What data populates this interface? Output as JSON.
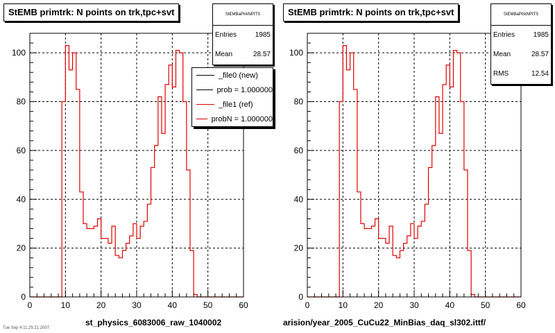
{
  "colors": {
    "hist": "#e00000",
    "ref_line": "#000000",
    "grid": "#000000"
  },
  "chart_data": [
    {
      "type": "bar",
      "title": "StEMB primtrk: N points on trk,tpc+svt",
      "xlim": [
        0,
        60
      ],
      "ylim": [
        0,
        108
      ],
      "x_ticks": [
        0,
        10,
        20,
        30,
        40,
        50,
        60
      ],
      "y_ticks": [
        0,
        20,
        40,
        60,
        80,
        100
      ],
      "grid": true,
      "bin_edges_start": 0,
      "bin_width": 1,
      "values": [
        0,
        0,
        0,
        0,
        0,
        0,
        0,
        0,
        0,
        80,
        103,
        93,
        100,
        85,
        43,
        30,
        28,
        28,
        29,
        32,
        24,
        24,
        22,
        29,
        17,
        16,
        19,
        22,
        25,
        30,
        24,
        29,
        31,
        38,
        53,
        62,
        82,
        67,
        87,
        95,
        86,
        101,
        100,
        80,
        52,
        19,
        1,
        0,
        0,
        0,
        0,
        0,
        0,
        0,
        0,
        0,
        0,
        0,
        0,
        0
      ],
      "stats": {
        "name": "StEMBaPtrkNPtTS",
        "entries_label": "Entries",
        "entries": "1985",
        "mean_label": "Mean",
        "mean": "28.57"
      },
      "legend": [
        {
          "label": "_file0 (new)",
          "color": "#000000"
        },
        {
          "label": "prob = 1.000000",
          "color": "#000000"
        },
        {
          "label": "_file1 (ref)",
          "color": "#e00000"
        },
        {
          "label": "probN = 1.000000",
          "color": "#e00000"
        }
      ],
      "file_label": "st_physics_6083006_raw_1040002"
    },
    {
      "type": "bar",
      "title": "StEMB primtrk: N points on trk,tpc+svt",
      "xlim": [
        0,
        60
      ],
      "ylim": [
        0,
        108
      ],
      "x_ticks": [
        0,
        10,
        20,
        30,
        40,
        50,
        60
      ],
      "y_ticks": [
        0,
        20,
        40,
        60,
        80,
        100
      ],
      "grid": true,
      "bin_edges_start": 0,
      "bin_width": 1,
      "values": [
        0,
        0,
        0,
        0,
        0,
        0,
        0,
        0,
        0,
        80,
        103,
        93,
        100,
        85,
        43,
        30,
        28,
        28,
        29,
        32,
        24,
        24,
        22,
        29,
        17,
        16,
        19,
        22,
        25,
        30,
        24,
        29,
        31,
        38,
        53,
        62,
        82,
        67,
        87,
        95,
        86,
        101,
        100,
        80,
        52,
        19,
        1,
        0,
        0,
        0,
        0,
        0,
        0,
        0,
        0,
        0,
        0,
        0,
        0,
        0
      ],
      "stats": {
        "name": "StEMBaPtrkNPtTS",
        "entries_label": "Entries",
        "entries": "1985",
        "mean_label": "Mean",
        "mean": "28.57",
        "rms_label": "RMS",
        "rms": "12.54"
      },
      "file_label": "arision/year_2005_CuCu22_MinBias_daq_sl302.ittf/"
    }
  ],
  "footer": "Tue Sep 4 11:25:21 2007"
}
